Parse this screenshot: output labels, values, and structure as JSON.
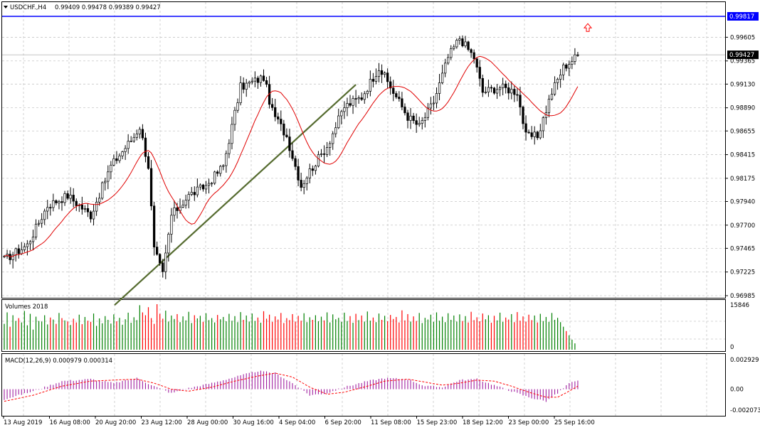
{
  "header": {
    "symbol": "USDCHF.,H4",
    "ohlc": "0.99409 0.99478 0.99389 0.99427"
  },
  "volumes_panel": {
    "title": "Volumes 2018"
  },
  "macd_panel": {
    "title": "MACD(12,26,9) 0.000979 0.000314"
  },
  "colors": {
    "grid": "#c8c8c8",
    "bull": "#008000",
    "bear": "#ff0000",
    "macd_hist": "#a020a0",
    "signal": "#ff0000",
    "ma": "#e00000",
    "trendline": "#556b2f",
    "hline": "#0000ff",
    "candle": "#000000"
  },
  "chart_data": [
    {
      "type": "candlestick",
      "title": "USDCHF.,H4",
      "ylim": [
        0.96985,
        0.99817
      ],
      "y_ticks": [
        "0.99817",
        "0.99605",
        "0.99365",
        "0.99130",
        "0.98890",
        "0.98655",
        "0.98415",
        "0.98175",
        "0.97940",
        "0.97700",
        "0.97465",
        "0.97225",
        "0.96985"
      ],
      "current_price": "0.99427",
      "hline_price": "0.99817",
      "hline_label": "0.99817",
      "x_labels": [
        "13 Aug 2019",
        "16 Aug 08:00",
        "20 Aug 20:00",
        "23 Aug 12:00",
        "28 Aug 00:00",
        "30 Aug 16:00",
        "4 Sep 04:00",
        "6 Sep 20:00",
        "11 Sep 08:00",
        "15 Sep 23:00",
        "18 Sep 12:00",
        "23 Sep 00:00",
        "25 Sep 16:00"
      ],
      "trendline": [
        [
          0,
          0.9689
        ],
        [
          122,
          0.99125
        ]
      ],
      "arrow_price": 0.997,
      "close_anchors": [
        [
          0,
          0.9735
        ],
        [
          8,
          0.975
        ],
        [
          15,
          0.979
        ],
        [
          22,
          0.98
        ],
        [
          30,
          0.978
        ],
        [
          37,
          0.983
        ],
        [
          45,
          0.986
        ],
        [
          47,
          0.987
        ],
        [
          50,
          0.983
        ],
        [
          52,
          0.9745
        ],
        [
          55,
          0.972
        ],
        [
          58,
          0.978
        ],
        [
          64,
          0.98
        ],
        [
          70,
          0.981
        ],
        [
          76,
          0.983
        ],
        [
          82,
          0.991
        ],
        [
          90,
          0.992
        ],
        [
          93,
          0.9885
        ],
        [
          98,
          0.986
        ],
        [
          103,
          0.981
        ],
        [
          106,
          0.9825
        ],
        [
          112,
          0.985
        ],
        [
          118,
          0.989
        ],
        [
          124,
          0.99
        ],
        [
          130,
          0.993
        ],
        [
          135,
          0.9905
        ],
        [
          140,
          0.988
        ],
        [
          144,
          0.987
        ],
        [
          149,
          0.9895
        ],
        [
          154,
          0.994
        ],
        [
          158,
          0.996
        ],
        [
          163,
          0.994
        ],
        [
          166,
          0.9905
        ],
        [
          172,
          0.991
        ],
        [
          178,
          0.9905
        ],
        [
          181,
          0.986
        ],
        [
          185,
          0.986
        ],
        [
          190,
          0.9905
        ],
        [
          194,
          0.993
        ],
        [
          199,
          0.9942
        ]
      ],
      "volumes": {
        "max_label": "15846",
        "min_label": "0",
        "range": [
          0,
          15846
        ],
        "values": [
          9000,
          13000,
          8000,
          12000,
          10000,
          11000,
          9500,
          13500,
          8500,
          12500,
          7000,
          11500,
          10000,
          9800,
          12000,
          8800,
          11200,
          10500,
          9000,
          12800,
          11000,
          10200,
          9800,
          8600,
          10800,
          9500,
          12200,
          8900,
          11400,
          10100,
          9700,
          12600,
          8300,
          10900,
          9200,
          11700,
          10400,
          9100,
          12300,
          9900,
          11100,
          8700,
          10600,
          12900,
          9400,
          11300,
          10300,
          15500,
          13000,
          12000,
          14800,
          11000,
          9000,
          15846,
          12500,
          10800,
          13600,
          9800,
          11900,
          10700,
          12400,
          9600,
          11600,
          10200,
          13200,
          9300,
          12000,
          10900,
          11800,
          9700,
          12700,
          10300,
          11000,
          9500,
          12100,
          10600,
          11400,
          9900,
          12500,
          10100,
          11700,
          9600,
          13100,
          10400,
          11900,
          9800,
          12600,
          10000,
          11200,
          9400,
          13400,
          10800,
          12200,
          9700,
          11600,
          10500,
          12800,
          9300,
          11000,
          10300,
          12400,
          9800,
          11800,
          10100,
          12700,
          9600,
          11300,
          10400,
          12000,
          9900,
          11500,
          10200,
          13000,
          9500,
          12300,
          10600,
          11100,
          9700,
          12900,
          10000,
          11700,
          9400,
          12500,
          10300,
          11900,
          9800,
          13300,
          10100,
          11200,
          9600,
          12600,
          10400,
          11800,
          9900,
          12100,
          10700,
          11400,
          9500,
          13700,
          10200,
          12400,
          9800,
          11600,
          10000,
          12800,
          9300,
          11100,
          10500,
          12200,
          9700,
          13000,
          10100,
          11500,
          9600,
          12700,
          10400,
          11900,
          9800,
          12300,
          10000,
          11700,
          9500,
          13200,
          10300,
          11300,
          9900,
          12600,
          10600,
          12000,
          9400,
          11800,
          10200,
          12900,
          9700,
          11200,
          10500,
          12400,
          9600,
          13100,
          10100,
          11600,
          9800,
          12200,
          10300,
          11900,
          9500,
          12500,
          10000,
          11400,
          9700,
          12800,
          10400,
          11100,
          9600,
          8000,
          6500,
          5000,
          3500,
          2200
        ]
      },
      "macd": {
        "ylim": [
          -0.002073,
          0.002929
        ],
        "ticks": [
          "0.002929",
          "0.00",
          "-0.002073"
        ],
        "hist_anchors": [
          [
            0,
            -0.001
          ],
          [
            10,
            -0.0002
          ],
          [
            20,
            0.0008
          ],
          [
            30,
            0.001
          ],
          [
            38,
            0.0006
          ],
          [
            46,
            0.0011
          ],
          [
            52,
            0.0003
          ],
          [
            58,
            -0.0004
          ],
          [
            64,
            0.0001
          ],
          [
            72,
            0.0006
          ],
          [
            80,
            0.0012
          ],
          [
            88,
            0.0018
          ],
          [
            94,
            0.0016
          ],
          [
            100,
            0.0006
          ],
          [
            106,
            -0.0006
          ],
          [
            112,
            -0.0004
          ],
          [
            118,
            0.0002
          ],
          [
            126,
            0.0008
          ],
          [
            132,
            0.0011
          ],
          [
            140,
            0.001
          ],
          [
            146,
            0.0003
          ],
          [
            152,
            0.0002
          ],
          [
            158,
            0.0009
          ],
          [
            164,
            0.001
          ],
          [
            170,
            0.0004
          ],
          [
            176,
            -0.0002
          ],
          [
            182,
            -0.0008
          ],
          [
            188,
            -0.0012
          ],
          [
            192,
            -0.0004
          ],
          [
            196,
            0.0006
          ],
          [
            199,
            0.0008
          ]
        ],
        "signal_anchors": [
          [
            0,
            -0.0012
          ],
          [
            10,
            -0.0006
          ],
          [
            20,
            0.0003
          ],
          [
            30,
            0.0008
          ],
          [
            38,
            0.0009
          ],
          [
            46,
            0.001
          ],
          [
            52,
            0.0006
          ],
          [
            58,
            0.0
          ],
          [
            64,
            -0.0002
          ],
          [
            72,
            0.0002
          ],
          [
            80,
            0.0008
          ],
          [
            88,
            0.0013
          ],
          [
            94,
            0.0016
          ],
          [
            100,
            0.0012
          ],
          [
            106,
            0.0002
          ],
          [
            112,
            -0.0005
          ],
          [
            118,
            -0.0003
          ],
          [
            126,
            0.0003
          ],
          [
            132,
            0.0008
          ],
          [
            140,
            0.001
          ],
          [
            146,
            0.0007
          ],
          [
            152,
            0.0004
          ],
          [
            158,
            0.0006
          ],
          [
            164,
            0.0009
          ],
          [
            170,
            0.0008
          ],
          [
            176,
            0.0003
          ],
          [
            182,
            -0.0003
          ],
          [
            188,
            -0.0008
          ],
          [
            192,
            -0.0008
          ],
          [
            196,
            -0.0002
          ],
          [
            199,
            0.0003
          ]
        ]
      }
    }
  ]
}
